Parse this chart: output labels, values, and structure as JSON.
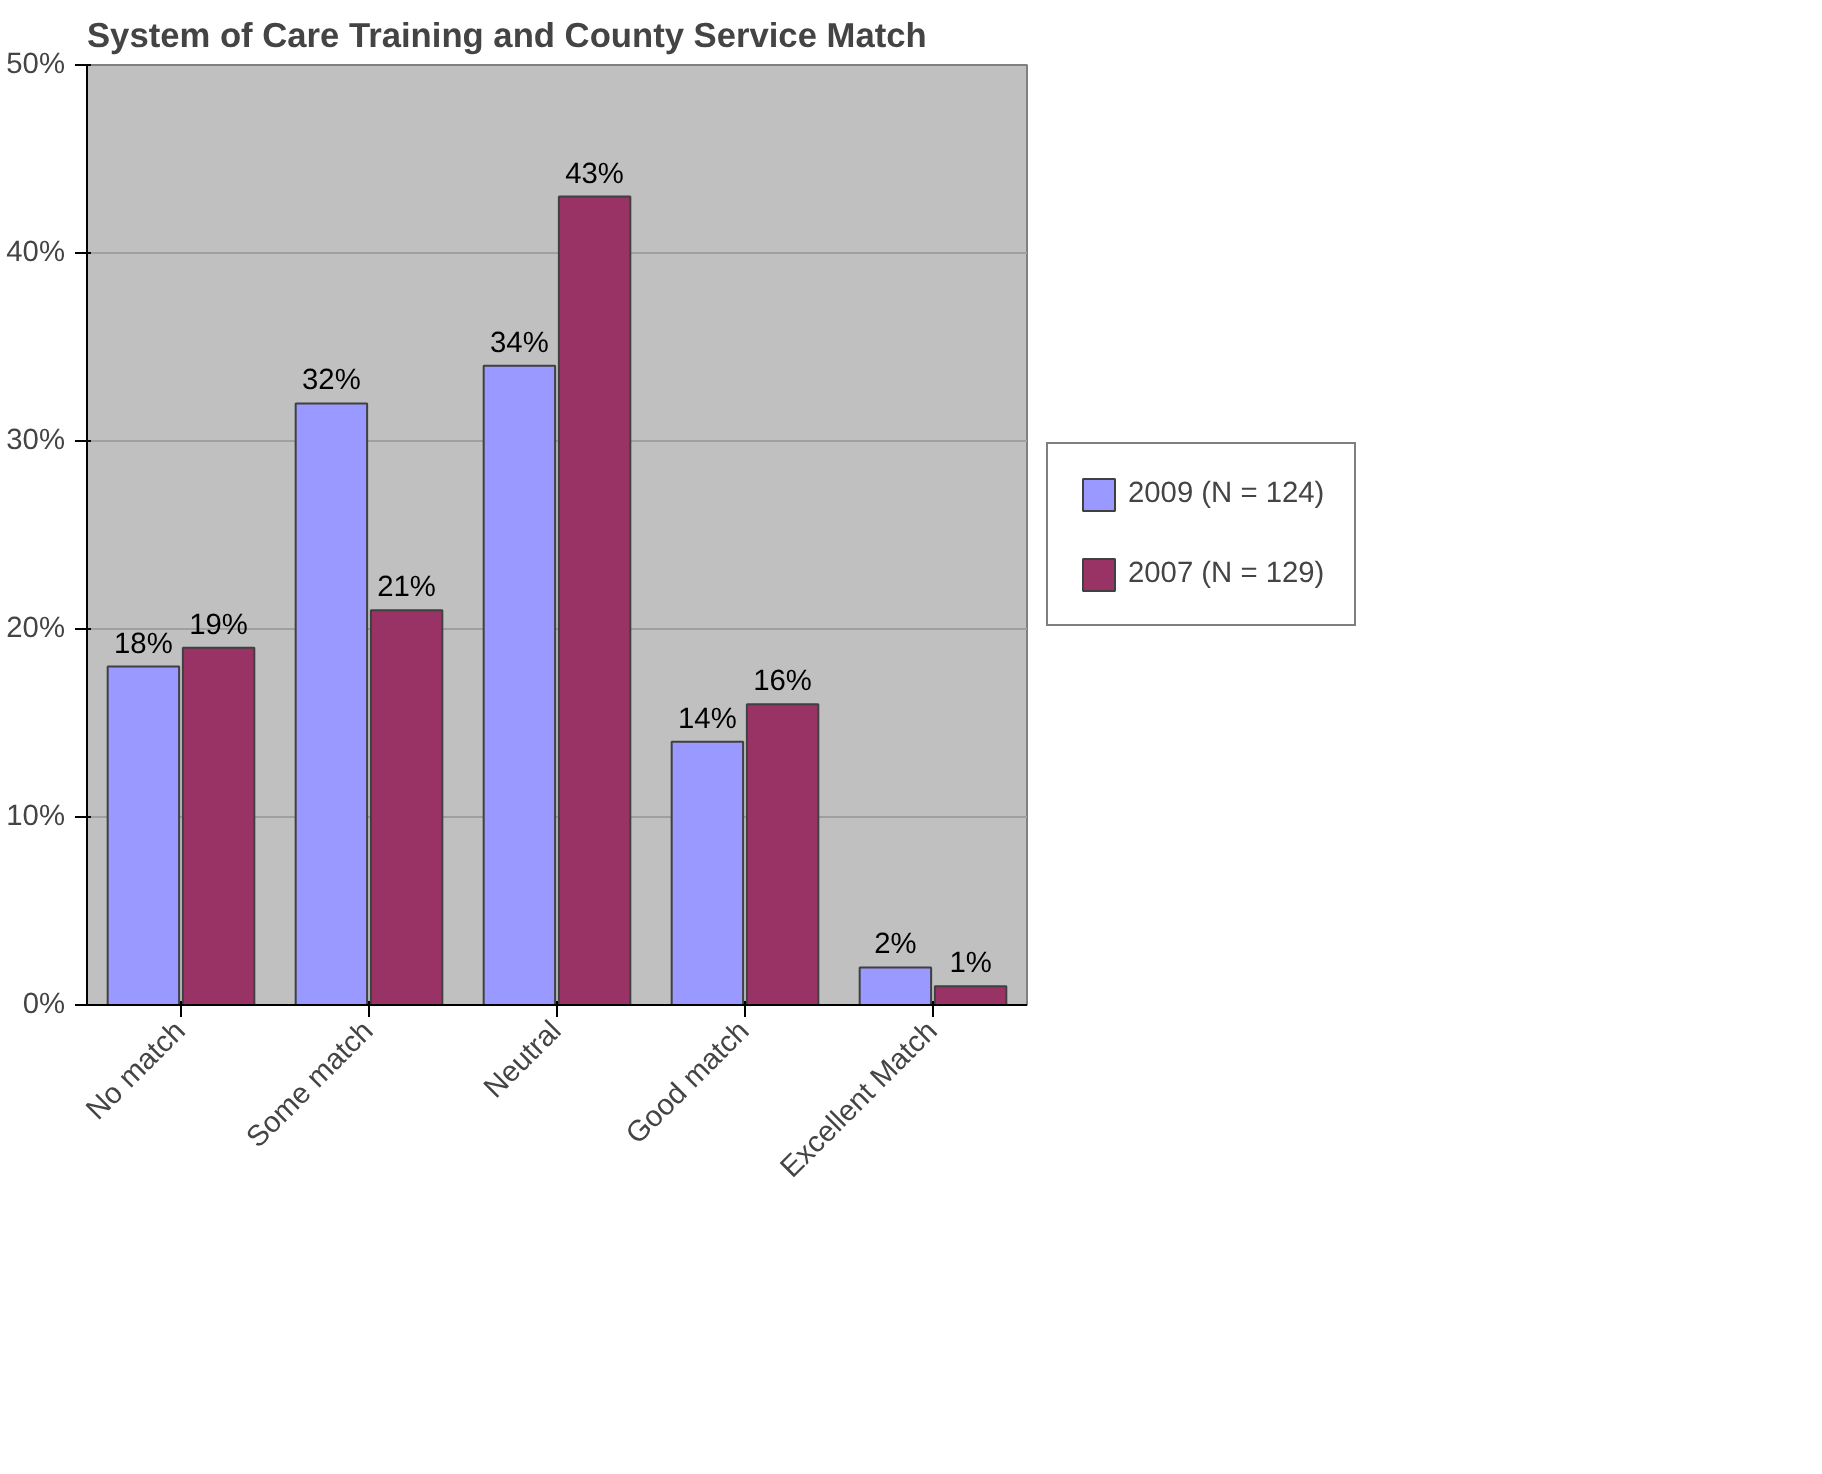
{
  "chart_data": {
    "type": "bar",
    "title": "System of Care Training and County Service Match",
    "categories": [
      "No match",
      "Some match",
      "Neutral",
      "Good match",
      "Excellent Match"
    ],
    "series": [
      {
        "name": "2009 (N = 124)",
        "color": "#9999ff",
        "values": [
          18,
          32,
          34,
          14,
          2
        ],
        "value_labels": [
          "18%",
          "32%",
          "34%",
          "14%",
          "2%"
        ]
      },
      {
        "name": "2007 (N = 129)",
        "color": "#993366",
        "values": [
          19,
          21,
          43,
          16,
          1
        ],
        "value_labels": [
          "19%",
          "21%",
          "43%",
          "16%",
          "1%"
        ]
      }
    ],
    "ylim": [
      0,
      50
    ],
    "yticks": [
      {
        "value": 0,
        "label": "0%"
      },
      {
        "value": 10,
        "label": "10%"
      },
      {
        "value": 20,
        "label": "20%"
      },
      {
        "value": 30,
        "label": "30%"
      },
      {
        "value": 40,
        "label": "40%"
      },
      {
        "value": 50,
        "label": "50%"
      }
    ],
    "grid": "y",
    "legend": "right"
  }
}
